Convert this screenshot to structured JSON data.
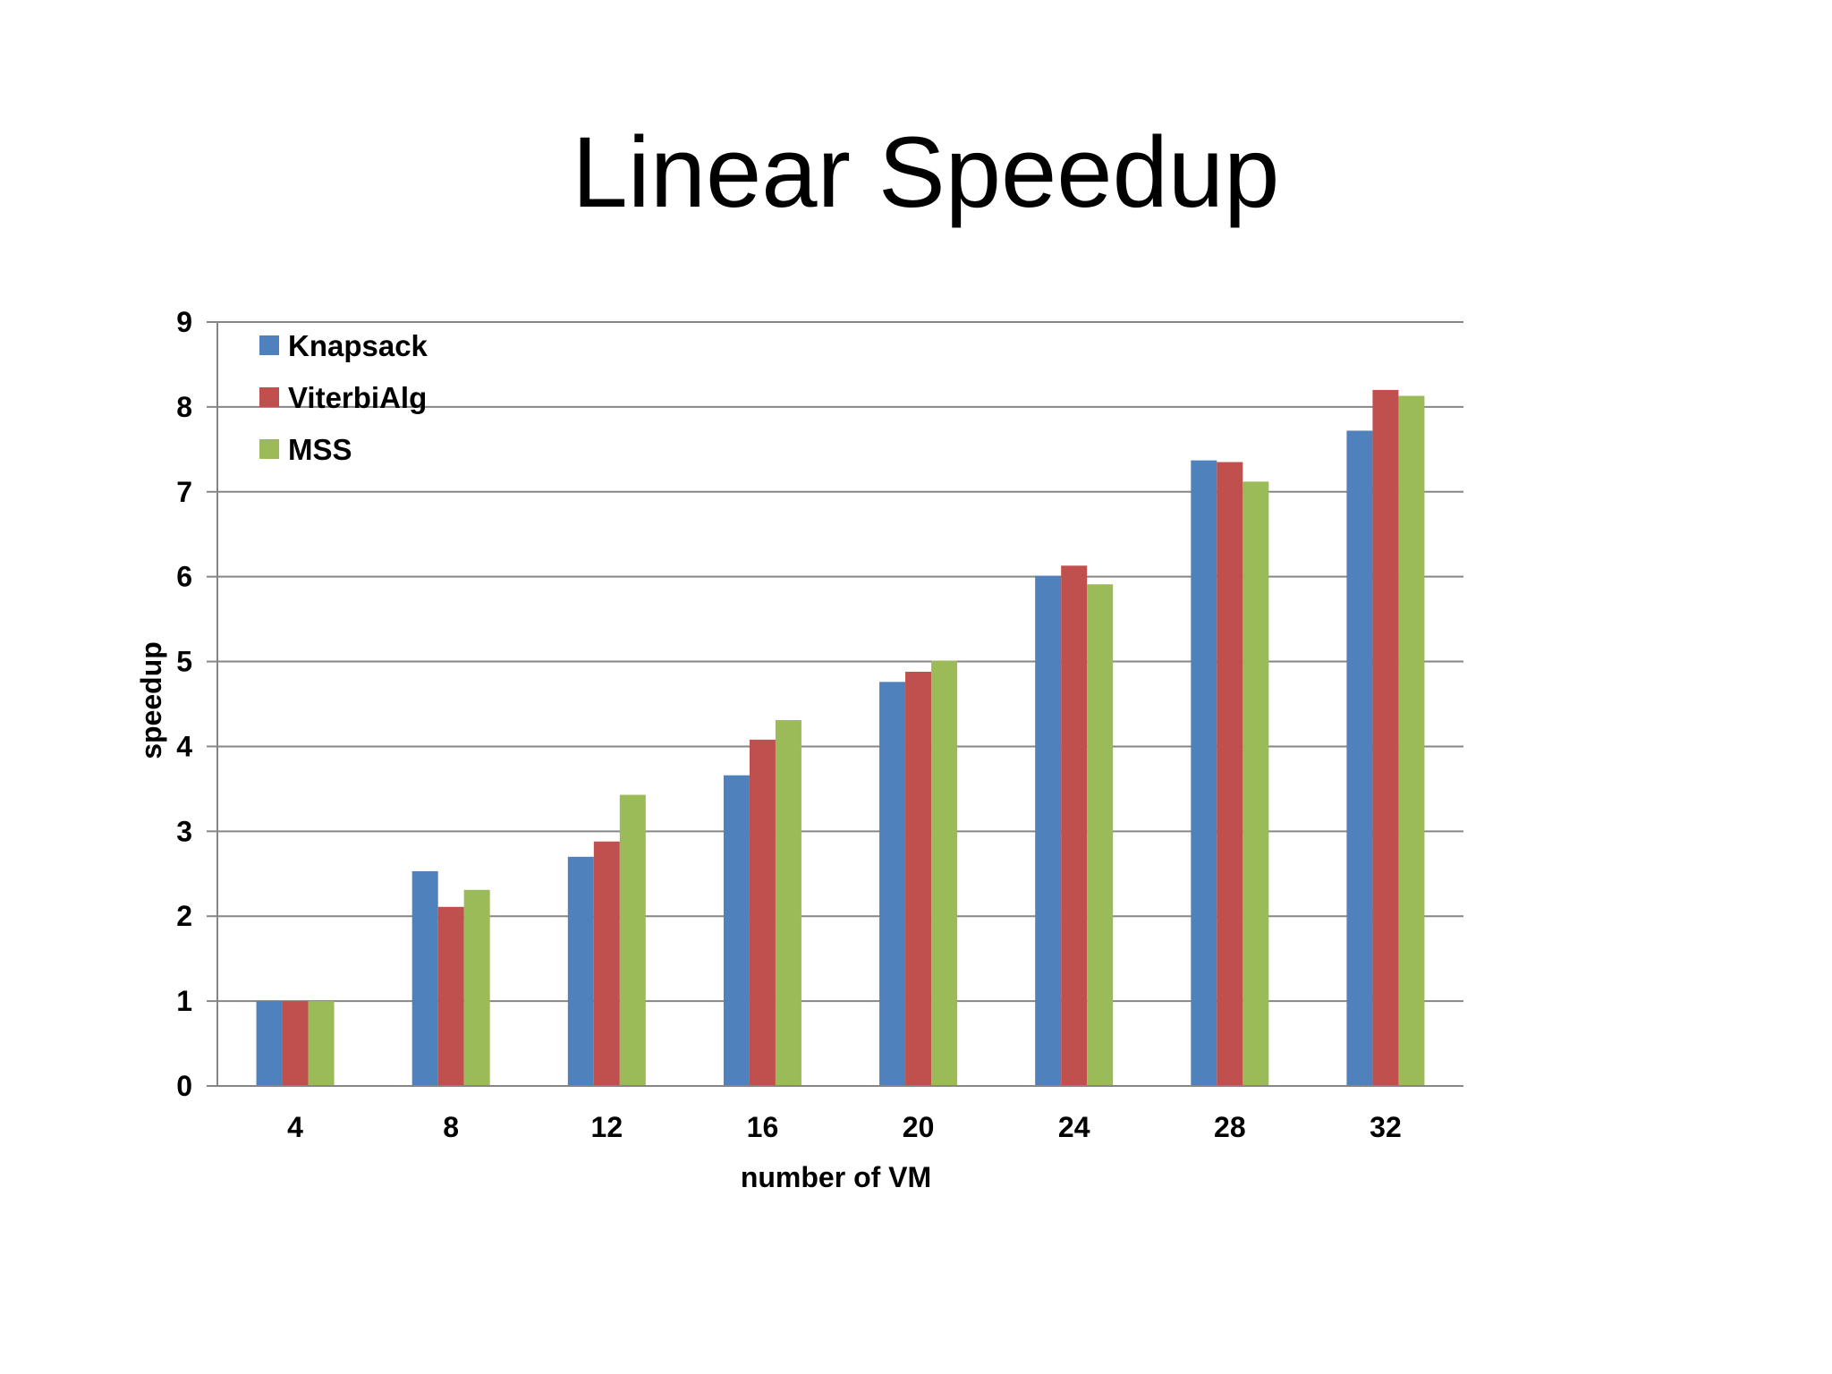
{
  "page": {
    "title": "Linear Speedup"
  },
  "chart_data": {
    "type": "bar",
    "title": "",
    "xlabel": "number of VM",
    "ylabel": "speedup",
    "categories": [
      "4",
      "8",
      "12",
      "16",
      "20",
      "24",
      "28",
      "32"
    ],
    "series": [
      {
        "name": "Knapsack",
        "color": "#4F81BD",
        "values": [
          1.0,
          2.53,
          2.7,
          3.66,
          4.76,
          6.01,
          7.37,
          7.72
        ]
      },
      {
        "name": "ViterbiAlg",
        "color": "#C0504D",
        "values": [
          1.0,
          2.11,
          2.88,
          4.08,
          4.88,
          6.13,
          7.35,
          8.2
        ]
      },
      {
        "name": "MSS",
        "color": "#9BBB59",
        "values": [
          1.0,
          2.31,
          3.43,
          4.31,
          5.01,
          5.91,
          7.12,
          8.13
        ]
      }
    ],
    "ylim": [
      0,
      9
    ],
    "yticks": [
      "0",
      "1",
      "2",
      "3",
      "4",
      "5",
      "6",
      "7",
      "8",
      "9"
    ],
    "grid": true,
    "legend_position": "top-left"
  }
}
